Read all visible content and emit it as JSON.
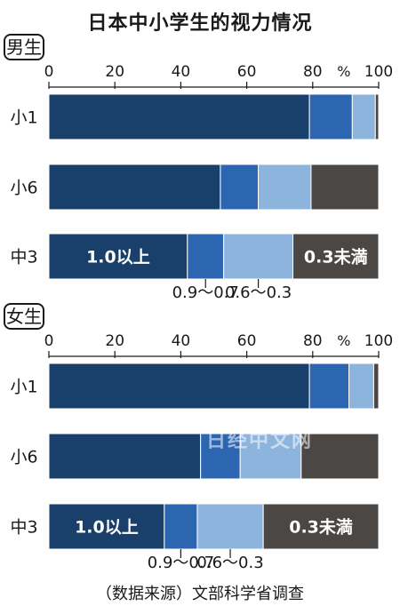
{
  "title": "日本中小学生的视力情况",
  "source": "（数据来源）文部科学省调查",
  "watermark": "日经中文网",
  "colors": {
    "vision_1_0_plus": "#193f6b",
    "vision_0_9_0_7": "#2c66b0",
    "vision_0_6_0_3": "#8db4dc",
    "vision_under_0_3": "#4b4745"
  },
  "chart_data": [
    {
      "type": "bar",
      "orientation": "horizontal",
      "stacked": true,
      "group_label": "男生",
      "categories": [
        "小1",
        "小6",
        "中3"
      ],
      "x_ticks": [
        "0",
        "20",
        "40",
        "60",
        "80",
        "100"
      ],
      "unit": "%",
      "xlim": [
        0,
        100
      ],
      "series": [
        {
          "name": "1.0以上",
          "values": [
            79,
            52,
            42
          ]
        },
        {
          "name": "0.9～0.7",
          "values": [
            13,
            11.5,
            11
          ]
        },
        {
          "name": "0.6～0.3",
          "values": [
            7,
            16,
            21
          ]
        },
        {
          "name": "0.3未満",
          "values": [
            1,
            20.5,
            26
          ]
        }
      ],
      "inline_labels": [
        {
          "series": "1.0以上",
          "category": "中3",
          "text": "1.0以上"
        },
        {
          "series": "0.3未満",
          "category": "中3",
          "text": "0.3未満"
        }
      ],
      "callout_labels": [
        "0.9～0.7",
        "0.6～0.3"
      ]
    },
    {
      "type": "bar",
      "orientation": "horizontal",
      "stacked": true,
      "group_label": "女生",
      "categories": [
        "小1",
        "小6",
        "中3"
      ],
      "x_ticks": [
        "0",
        "20",
        "40",
        "60",
        "80",
        "100"
      ],
      "unit": "%",
      "xlim": [
        0,
        100
      ],
      "series": [
        {
          "name": "1.0以上",
          "values": [
            79,
            46,
            35
          ]
        },
        {
          "name": "0.9～0.7",
          "values": [
            12,
            12,
            10
          ]
        },
        {
          "name": "0.6～0.3",
          "values": [
            7.5,
            18.5,
            20
          ]
        },
        {
          "name": "0.3未満",
          "values": [
            1.5,
            23.5,
            35
          ]
        }
      ],
      "inline_labels": [
        {
          "series": "1.0以上",
          "category": "中3",
          "text": "1.0以上"
        },
        {
          "series": "0.3未満",
          "category": "中3",
          "text": "0.3未満"
        }
      ],
      "callout_labels": [
        "0.9～0.7",
        "0.6～0.3"
      ]
    }
  ]
}
